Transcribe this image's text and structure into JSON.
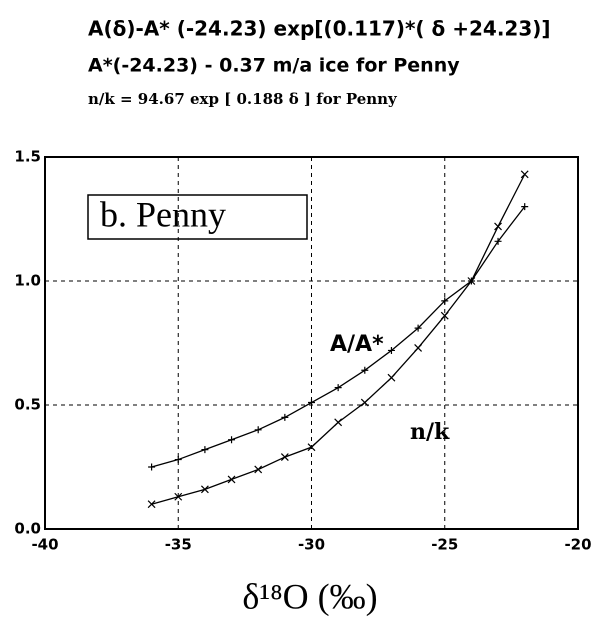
{
  "chart_data": {
    "type": "line",
    "title_lines": [
      "A(δ)-A* (-24.23) exp[(0.117)*( δ +24.23)]",
      "A*(-24.23) - 0.37 m/a ice for Penny",
      "n/k = 94.67 exp [ 0.188 δ ]   for Penny"
    ],
    "panel_label": "b.   Penny",
    "xlabel": "δ¹⁸O  (‰)",
    "x": [
      -36,
      -35,
      -34,
      -33,
      -32,
      -31,
      -30,
      -29,
      -28,
      -27,
      -26,
      -25,
      -24,
      -23,
      -22
    ],
    "series": [
      {
        "name": "A/A*",
        "color": "#000000",
        "marker": "plus",
        "values": [
          0.25,
          0.28,
          0.32,
          0.36,
          0.4,
          0.45,
          0.51,
          0.57,
          0.64,
          0.72,
          0.81,
          0.92,
          1.0,
          1.16,
          1.3
        ]
      },
      {
        "name": "n/k",
        "color": "#000000",
        "marker": "cross",
        "values": [
          0.1,
          0.13,
          0.16,
          0.2,
          0.24,
          0.29,
          0.33,
          0.43,
          0.51,
          0.61,
          0.73,
          0.86,
          1.0,
          1.22,
          1.43
        ]
      }
    ],
    "xlim": [
      -40,
      -20
    ],
    "xticks": [
      -40,
      -35,
      -30,
      -25,
      -20
    ],
    "ylim": [
      0,
      1.5
    ],
    "yticks": [
      {
        "value": 0,
        "label": "0.0"
      },
      0.5,
      {
        "value": 1,
        "label": "1.0"
      },
      {
        "value": 1.5,
        "label": "1.5"
      }
    ],
    "grid": true
  }
}
